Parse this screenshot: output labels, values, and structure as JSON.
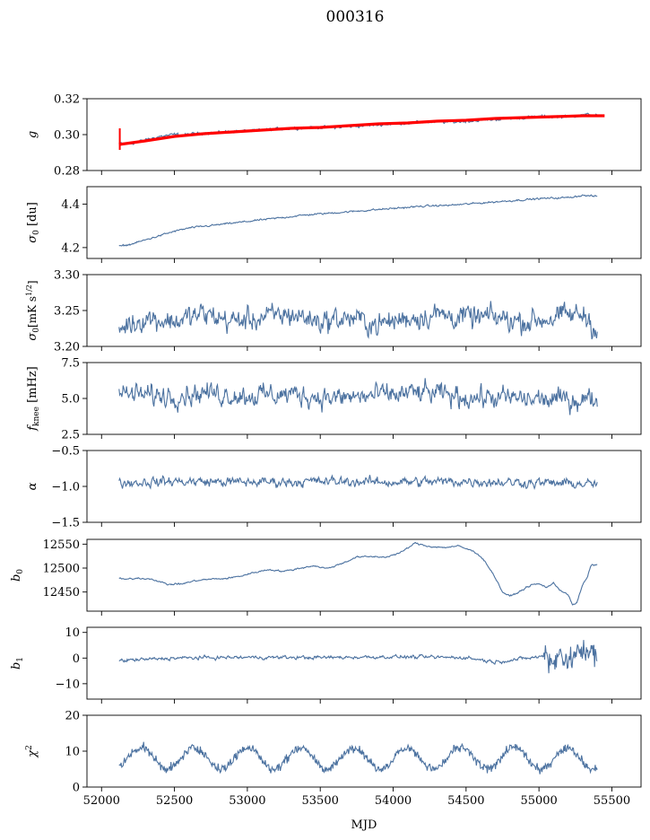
{
  "chart_data": {
    "title": "000316",
    "type": "line",
    "xlabel": "MJD",
    "xlim": [
      51900,
      55700
    ],
    "xticks": [
      52000,
      52500,
      53000,
      53500,
      54000,
      54500,
      55000,
      55500
    ],
    "xtick_labels": [
      "52000",
      "52500",
      "53000",
      "53500",
      "54000",
      "54500",
      "55000",
      "55500"
    ],
    "series_color": "#4c72a0",
    "fit_color": "#ff0000",
    "panels": [
      {
        "id": "g",
        "ylabel": "g",
        "ylim": [
          0.28,
          0.32
        ],
        "yticks": [
          0.28,
          0.3,
          0.32
        ],
        "ytick_labels": [
          "0.28",
          "0.30",
          "0.32"
        ],
        "x": [
          52120,
          52150,
          52200,
          52300,
          52400,
          52500,
          52600,
          52700,
          52800,
          52900,
          53000,
          53200,
          53400,
          53600,
          53800,
          54000,
          54200,
          54400,
          54600,
          54800,
          55000,
          55200,
          55300,
          55400
        ],
        "values": [
          0.295,
          0.295,
          0.295,
          0.297,
          0.299,
          0.3,
          0.3,
          0.301,
          0.301,
          0.302,
          0.302,
          0.303,
          0.304,
          0.304,
          0.305,
          0.306,
          0.307,
          0.307,
          0.308,
          0.309,
          0.31,
          0.31,
          0.311,
          0.311
        ],
        "noise": 0.0006,
        "fit": {
          "x": [
            52120,
            52300,
            52500,
            52700,
            52900,
            53100,
            53300,
            53500,
            53700,
            53900,
            54100,
            54300,
            54500,
            54700,
            54900,
            55100,
            55300,
            55400,
            55450
          ],
          "values": [
            0.2945,
            0.2965,
            0.299,
            0.3005,
            0.3015,
            0.3025,
            0.3035,
            0.304,
            0.305,
            0.306,
            0.3065,
            0.3075,
            0.308,
            0.309,
            0.3095,
            0.31,
            0.3105,
            0.3105,
            0.3105
          ]
        }
      },
      {
        "id": "sigma0-du",
        "ylabel": "σ₀ [du]",
        "ylim": [
          4.15,
          4.48
        ],
        "yticks": [
          4.2,
          4.4
        ],
        "ytick_labels": [
          "4.2",
          "4.4"
        ],
        "x": [
          52120,
          52200,
          52300,
          52400,
          52500,
          52600,
          52800,
          53000,
          53200,
          53400,
          53600,
          53800,
          54000,
          54200,
          54400,
          54600,
          54800,
          55000,
          55200,
          55300,
          55400
        ],
        "values": [
          4.205,
          4.215,
          4.235,
          4.255,
          4.275,
          4.29,
          4.305,
          4.32,
          4.335,
          4.35,
          4.36,
          4.37,
          4.38,
          4.39,
          4.395,
          4.405,
          4.415,
          4.425,
          4.43,
          4.44,
          4.435
        ],
        "noise": 0.003
      },
      {
        "id": "sigma0-mk",
        "ylabel": "σ₀[mK s^1/2]",
        "ylim": [
          3.2,
          3.3
        ],
        "yticks": [
          3.2,
          3.25,
          3.3
        ],
        "ytick_labels": [
          "3.20",
          "3.25",
          "3.30"
        ],
        "x": [
          52120,
          52300,
          52500,
          52700,
          52900,
          53100,
          53300,
          53500,
          53700,
          53900,
          54100,
          54300,
          54500,
          54700,
          54900,
          55100,
          55300,
          55400
        ],
        "values": [
          3.225,
          3.24,
          3.235,
          3.245,
          3.235,
          3.24,
          3.245,
          3.235,
          3.24,
          3.23,
          3.24,
          3.245,
          3.24,
          3.24,
          3.235,
          3.24,
          3.245,
          3.225
        ],
        "noise": 0.012
      },
      {
        "id": "fknee",
        "ylabel": "f_knee [mHz]",
        "ylim": [
          2.5,
          7.5
        ],
        "yticks": [
          2.5,
          5.0,
          7.5
        ],
        "ytick_labels": [
          "2.5",
          "5.0",
          "7.5"
        ],
        "x": [
          52120,
          52400,
          52700,
          53000,
          53300,
          53600,
          53900,
          54200,
          54500,
          54800,
          55100,
          55400
        ],
        "values": [
          5.3,
          5.2,
          5.4,
          5.2,
          5.3,
          5.0,
          5.2,
          5.4,
          5.1,
          5.0,
          4.9,
          5.0
        ],
        "noise": 0.55
      },
      {
        "id": "alpha",
        "ylabel": "α",
        "ylim": [
          -1.5,
          -0.5
        ],
        "yticks": [
          -1.5,
          -1.0,
          -0.5
        ],
        "ytick_labels": [
          "−1.5",
          "−1.0",
          "−0.5"
        ],
        "x": [
          52120,
          52500,
          53000,
          53500,
          54000,
          54500,
          55000,
          55400
        ],
        "values": [
          -0.95,
          -0.93,
          -0.94,
          -0.93,
          -0.94,
          -0.93,
          -0.95,
          -0.97
        ],
        "noise": 0.05
      },
      {
        "id": "b0",
        "ylabel": "b₀",
        "ylim": [
          12410,
          12560
        ],
        "yticks": [
          12450,
          12500,
          12550
        ],
        "ytick_labels": [
          "12450",
          "12500",
          "12550"
        ],
        "x": [
          52120,
          52150,
          52250,
          52350,
          52450,
          52550,
          52650,
          52750,
          52850,
          52950,
          53050,
          53150,
          53250,
          53350,
          53450,
          53550,
          53650,
          53750,
          53850,
          53950,
          54050,
          54150,
          54250,
          54350,
          54450,
          54550,
          54600,
          54650,
          54700,
          54750,
          54800,
          54850,
          54900,
          54950,
          55000,
          55050,
          55100,
          55150,
          55200,
          55230,
          55260,
          55300,
          55330,
          55360,
          55400
        ],
        "values": [
          12480,
          12476,
          12479,
          12477,
          12466,
          12467,
          12474,
          12477,
          12478,
          12483,
          12491,
          12497,
          12493,
          12499,
          12505,
          12499,
          12510,
          12523,
          12524,
          12523,
          12532,
          12552,
          12545,
          12543,
          12546,
          12535,
          12525,
          12505,
          12480,
          12450,
          12441,
          12448,
          12457,
          12465,
          12467,
          12460,
          12468,
          12453,
          12445,
          12422,
          12428,
          12465,
          12480,
          12507,
          12507
        ],
        "noise": 1.2
      },
      {
        "id": "b1",
        "ylabel": "b₁",
        "ylim": [
          -16,
          12
        ],
        "yticks": [
          -10,
          0,
          10
        ],
        "ytick_labels": [
          "−10",
          "0",
          "10"
        ],
        "x": [
          52120,
          52500,
          53000,
          53500,
          54000,
          54500,
          54700,
          55000,
          55050,
          55100,
          55150,
          55200,
          55250,
          55300,
          55350,
          55400
        ],
        "values": [
          -1,
          0,
          0.3,
          0.2,
          0.5,
          0.2,
          -1.5,
          0.5,
          1,
          -2,
          2,
          -1,
          1,
          2,
          3,
          0
        ],
        "noise": 0.5
      },
      {
        "id": "chi2",
        "ylabel": "χ²",
        "ylim": [
          0,
          20
        ],
        "yticks": [
          0,
          10,
          20
        ],
        "ytick_labels": [
          "0",
          "10",
          "20"
        ],
        "x": [
          52120,
          53500,
          55400
        ],
        "values": [
          8,
          8,
          8
        ],
        "noise": 0.8
      }
    ]
  }
}
